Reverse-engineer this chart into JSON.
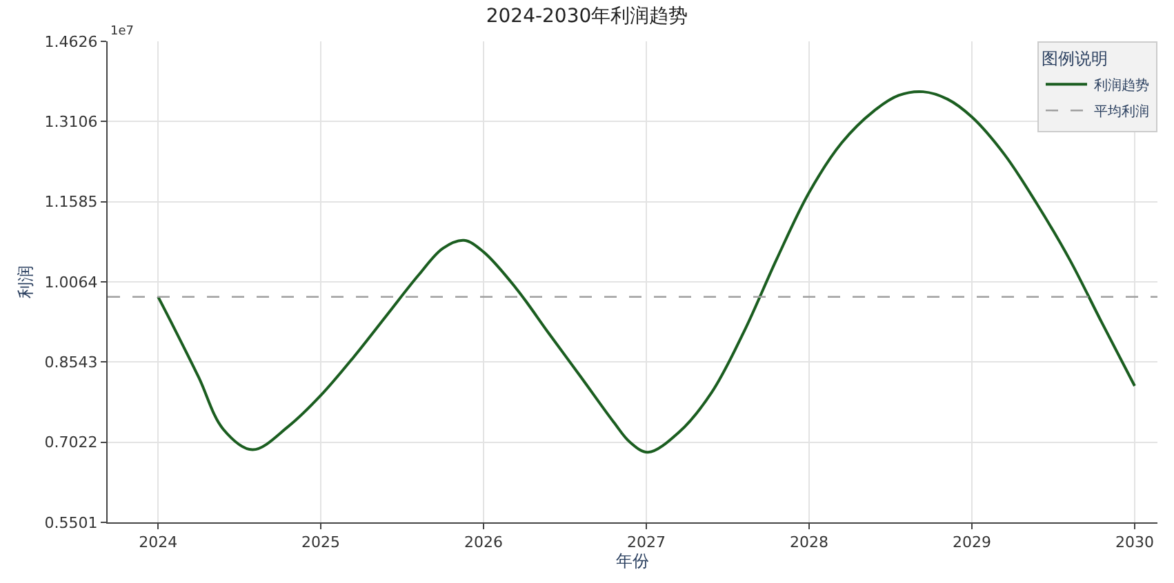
{
  "chart_data": {
    "type": "line",
    "title": "2024-2030年利润趋势",
    "xlabel": "年份",
    "ylabel": "利润",
    "legend_title": "图例说明",
    "annotations": [
      "1e7"
    ],
    "series": [
      {
        "name": "利润趋势",
        "color": "#1b5e20",
        "line_style": "solid",
        "x": [
          2024.0,
          2024.1,
          2024.25,
          2024.4,
          2024.58,
          2024.8,
          2025.0,
          2025.2,
          2025.4,
          2025.6,
          2025.75,
          2025.88,
          2026.0,
          2026.2,
          2026.4,
          2026.6,
          2026.8,
          2026.9,
          2027.01,
          2027.2,
          2027.4,
          2027.6,
          2027.8,
          2028.0,
          2028.2,
          2028.4,
          2028.55,
          2028.7,
          2028.85,
          2029.0,
          2029.2,
          2029.4,
          2029.6,
          2029.8,
          2030.0
        ],
        "values": [
          0.978,
          0.918,
          0.825,
          0.727,
          0.688,
          0.732,
          0.791,
          0.863,
          0.941,
          1.019,
          1.07,
          1.085,
          1.063,
          0.994,
          0.909,
          0.825,
          0.74,
          0.702,
          0.683,
          0.721,
          0.796,
          0.912,
          1.049,
          1.176,
          1.27,
          1.331,
          1.36,
          1.367,
          1.353,
          1.319,
          1.248,
          1.154,
          1.049,
          0.928,
          0.809
        ]
      }
    ],
    "ref_lines": [
      {
        "axis": "y",
        "value": 0.978,
        "label": "平均利润",
        "color": "#9e9e9e",
        "line_style": "dashed"
      }
    ],
    "xlim": [
      2023.69,
      2030.14
    ],
    "xticks": [
      2024,
      2025,
      2026,
      2027,
      2028,
      2029,
      2030
    ],
    "ylim": [
      0.5501,
      1.4626
    ],
    "yticks": [
      0.5501,
      0.7022,
      0.8543,
      1.0064,
      1.1585,
      1.3106,
      1.4626
    ],
    "grid": true,
    "legend": "top right"
  }
}
